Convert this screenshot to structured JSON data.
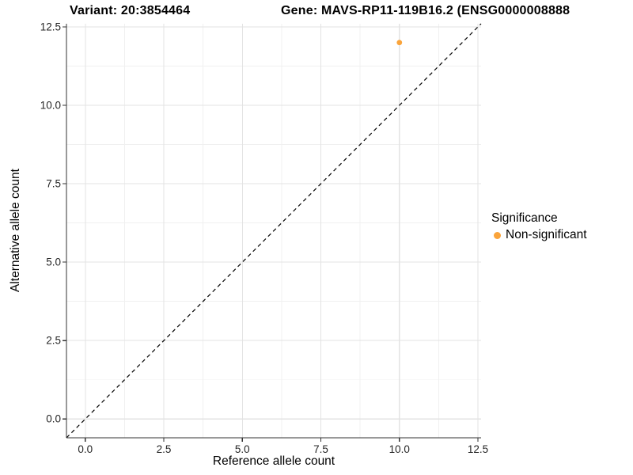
{
  "chart_data": {
    "type": "scatter",
    "titles": {
      "variant": "Variant: 20:3854464",
      "gene": "Gene: MAVS-RP11-119B16.2 (ENSG0000008888"
    },
    "xlabel": "Reference allele count",
    "ylabel": "Alternative allele count",
    "xlim": [
      -0.6,
      12.6
    ],
    "ylim": [
      -0.6,
      12.6
    ],
    "x_ticks": {
      "values": [
        0,
        2.5,
        5,
        7.5,
        10,
        12.5
      ],
      "labels": [
        "0.0",
        "2.5",
        "5.0",
        "7.5",
        "10.0",
        "12.5"
      ]
    },
    "y_ticks": {
      "values": [
        0,
        2.5,
        5,
        7.5,
        10,
        12.5
      ],
      "labels": [
        "0.0",
        "2.5",
        "5.0",
        "7.5",
        "10.0",
        "12.5"
      ]
    },
    "minor_ticks": [
      1.25,
      3.75,
      6.25,
      8.75,
      11.25
    ],
    "grid": true,
    "points": [
      {
        "x": 10,
        "y": 12,
        "series": "Non-significant",
        "color": "#FAA43B"
      }
    ],
    "reference_line": {
      "type": "identity",
      "slope": 1,
      "intercept": 0,
      "style": "dashed",
      "color": "#000000"
    },
    "legend": {
      "title": "Significance",
      "position": "right",
      "items": [
        {
          "label": "Non-significant",
          "color": "#FAA43B"
        }
      ]
    },
    "colors": {
      "point_orange": "#FAA43B",
      "axis": "#333333",
      "grid_major": "#E3E3E3",
      "grid_minor": "#F0F0F0",
      "tick_text": "#262626",
      "text": "#000000"
    }
  }
}
